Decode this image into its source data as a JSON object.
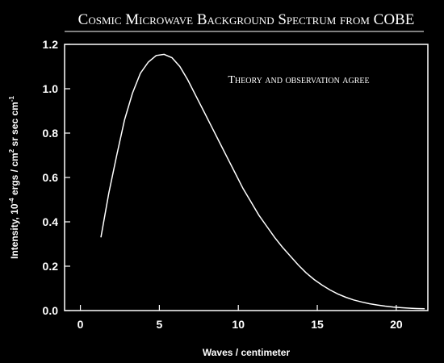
{
  "chart_data": {
    "type": "line",
    "title": "Cosmic Microwave Background Spectrum from COBE",
    "annotation": "Theory and observation agree",
    "xlabel": "Waves / centimeter",
    "ylabel": {
      "prefix": "Intensity, 10",
      "exp1": "-4",
      "mid": " ergs / cm",
      "exp2": "2",
      "suffix": " sr sec cm",
      "exp3": "-1"
    },
    "xlim": [
      -1,
      22
    ],
    "ylim": [
      0,
      1.2
    ],
    "xticks": [
      "0",
      "5",
      "10",
      "15",
      "20"
    ],
    "yticks": [
      "0.0",
      "0.2",
      "0.4",
      "0.6",
      "0.8",
      "1.0",
      "1.2"
    ],
    "grid": false,
    "series": [
      {
        "x": [
          1.3,
          1.8,
          2.3,
          2.8,
          3.3,
          3.8,
          4.3,
          4.8,
          5.3,
          5.8,
          6.3,
          6.8,
          7.3,
          7.8,
          8.3,
          8.8,
          9.3,
          9.8,
          10.3,
          10.8,
          11.3,
          11.8,
          12.3,
          12.8,
          13.3,
          13.8,
          14.3,
          14.8,
          15.3,
          15.8,
          16.3,
          16.8,
          17.3,
          17.8,
          18.3,
          18.8,
          19.3,
          19.8,
          20.3,
          20.8,
          21.3,
          21.8
        ],
        "y": [
          0.33,
          0.53,
          0.7,
          0.86,
          0.98,
          1.07,
          1.12,
          1.15,
          1.155,
          1.14,
          1.1,
          1.04,
          0.97,
          0.9,
          0.83,
          0.76,
          0.69,
          0.62,
          0.55,
          0.49,
          0.43,
          0.38,
          0.33,
          0.285,
          0.245,
          0.205,
          0.17,
          0.14,
          0.115,
          0.093,
          0.075,
          0.06,
          0.048,
          0.039,
          0.031,
          0.025,
          0.02,
          0.016,
          0.013,
          0.011,
          0.009,
          0.008
        ]
      }
    ]
  },
  "colors": {
    "background": "#000000",
    "foreground": "#ffffff"
  }
}
